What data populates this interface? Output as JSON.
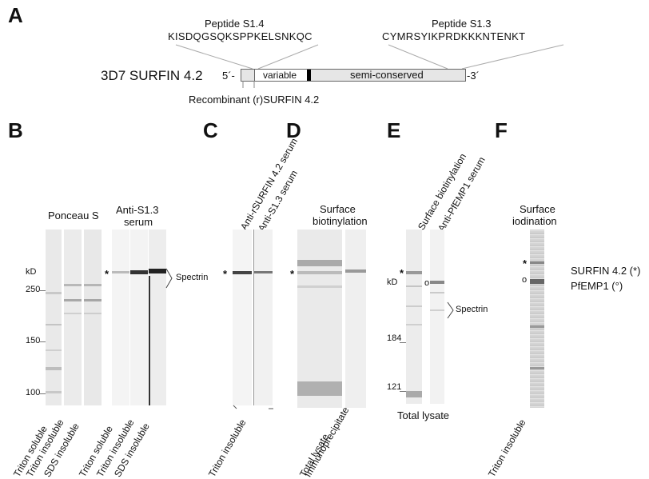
{
  "panels": {
    "a": "A",
    "b": "B",
    "c": "C",
    "d": "D",
    "e": "E",
    "f": "F"
  },
  "panelA": {
    "peptide_s14_title": "Peptide S1.4",
    "peptide_s14_seq": "KISDQGSQKSPPKELSNKQC",
    "peptide_s13_title": "Peptide S1.3",
    "peptide_s13_seq": "CYMRSYIKPRDKKKNTENKT",
    "protein_name": "3D7 SURFIN 4.2",
    "five_prime": "5´-",
    "three_prime": "-3´",
    "variable": "variable",
    "semi_conserved": "semi-conserved",
    "recombinant": "Recombinant (r)SURFIN 4.2"
  },
  "panelB": {
    "ponceau": "Ponceau S",
    "anti_s13_line1": "Anti-S1.3",
    "anti_s13_line2": "serum",
    "kd": "kD",
    "mw": [
      "250",
      "150",
      "100"
    ],
    "star": "*",
    "spectrin": "Spectrin",
    "lanes": [
      "Triton soluble",
      "Triton insoluble",
      "SDS insoluble",
      "Triton soluble",
      "Triton insoluble",
      "SDS insoluble"
    ]
  },
  "panelC": {
    "header1": "Anti-rSURFIN 4.2 serum",
    "header2": "Anti-S1.3 serum",
    "star": "*",
    "lane": "Triton insoluble"
  },
  "panelD": {
    "header1": "Surface",
    "header2": "biotinylation",
    "star": "*",
    "lanes": [
      "Total lysate",
      "Immunoprecipitate"
    ]
  },
  "panelE": {
    "header1": "Surface biotinylation",
    "header2": "Anti-PfEMP1 serum",
    "star": "*",
    "kd": "kD",
    "circle": "o",
    "mw": [
      "184",
      "121"
    ],
    "spectrin": "Spectrin",
    "footer": "Total lysate"
  },
  "panelF": {
    "header1": "Surface",
    "header2": "iodination",
    "star": "*",
    "circle": "o",
    "lane": "Triton insoluble",
    "legend_surfin": "SURFIN 4.2 (*)",
    "legend_pfemp1": "PfEMP1 (°)"
  }
}
